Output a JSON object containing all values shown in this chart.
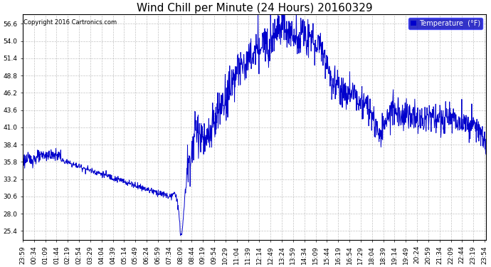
{
  "title": "Wind Chill per Minute (24 Hours) 20160329",
  "copyright": "Copyright 2016 Cartronics.com",
  "legend_label": "Temperature  (°F)",
  "y_ticks": [
    25.4,
    28.0,
    30.6,
    33.2,
    35.8,
    38.4,
    41.0,
    43.6,
    46.2,
    48.8,
    51.4,
    54.0,
    56.6
  ],
  "ylim": [
    24.0,
    58.0
  ],
  "line_color": "#0000cc",
  "bg_color": "#ffffff",
  "plot_bg_color": "#ffffff",
  "grid_color": "#aaaaaa",
  "title_fontsize": 11,
  "tick_fontsize": 6.5,
  "legend_bg": "#0000bb",
  "legend_fontsize": 7,
  "copyright_fontsize": 6
}
